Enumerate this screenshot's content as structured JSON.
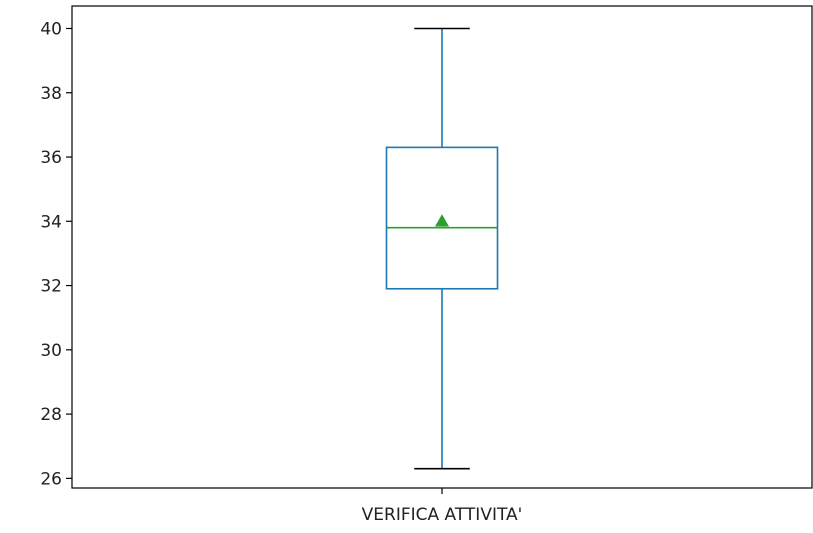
{
  "chart_data": {
    "type": "box",
    "categories": [
      "VERIFICA ATTIVITA'"
    ],
    "series": [
      {
        "whisker_low": 26.3,
        "q1": 31.9,
        "median": 33.8,
        "q3": 36.3,
        "whisker_high": 40.0,
        "mean": 34.0
      }
    ],
    "y_ticks": [
      26,
      28,
      30,
      32,
      34,
      36,
      38,
      40
    ],
    "ylim": [
      25.7,
      40.7
    ],
    "grid": false,
    "colors": {
      "box": "#1f77b4",
      "median": "#2ca02c",
      "mean_marker": "#2ca02c",
      "caps": "#000000",
      "axes": "#000000"
    }
  }
}
